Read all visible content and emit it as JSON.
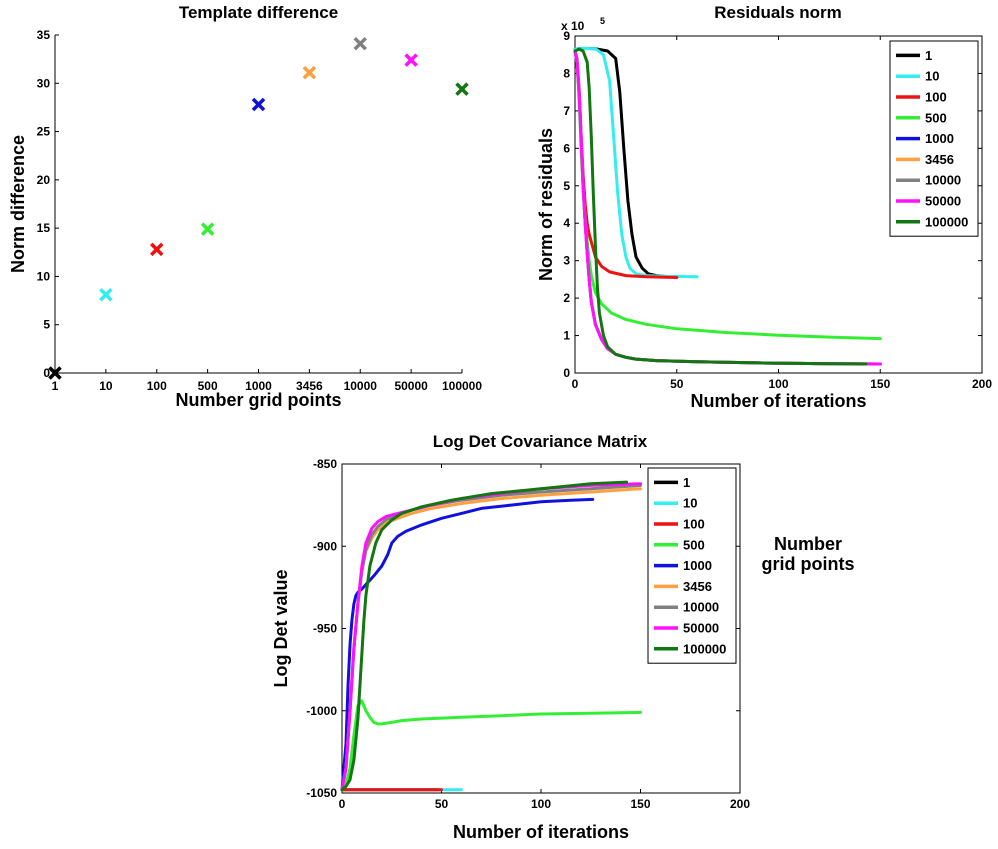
{
  "chart_data": [
    {
      "id": "template",
      "type": "scatter",
      "title": "Template difference",
      "xlabel": "Number grid points",
      "ylabel": "Norm difference",
      "categories": [
        "1",
        "10",
        "100",
        "500",
        "1000",
        "3456",
        "10000",
        "50000",
        "100000"
      ],
      "values": [
        0,
        8.1,
        12.8,
        14.9,
        27.8,
        31.1,
        34.1,
        32.4,
        29.4
      ],
      "colors": [
        "#000000",
        "#33eeee",
        "#ee1111",
        "#33ee33",
        "#1111dd",
        "#ffa040",
        "#808080",
        "#ff11ff",
        "#117711"
      ],
      "marker": "x",
      "ylim": [
        0,
        35
      ],
      "yticks": [
        0,
        5,
        10,
        15,
        20,
        25,
        30,
        35
      ],
      "grid": false
    },
    {
      "id": "residuals",
      "type": "line",
      "title": "Residuals norm",
      "xlabel": "Number of iterations",
      "ylabel": "Norm of residuals",
      "y_exponent_label": "x 10",
      "y_exponent": "5",
      "xlim": [
        0,
        200
      ],
      "ylim": [
        0,
        9
      ],
      "xticks": [
        0,
        50,
        100,
        150,
        200
      ],
      "yticks": [
        0,
        1,
        2,
        3,
        4,
        5,
        6,
        7,
        8,
        9
      ],
      "legend_position": "top-right",
      "grid": false,
      "series": [
        {
          "name": "1",
          "color": "#000000",
          "x": [
            0,
            4,
            10,
            16,
            20,
            22,
            24,
            26,
            28,
            30,
            33,
            36,
            40,
            44,
            48
          ],
          "y": [
            8.65,
            8.67,
            8.66,
            8.6,
            8.4,
            7.5,
            6.0,
            4.6,
            3.7,
            3.1,
            2.8,
            2.65,
            2.6,
            2.58,
            2.57
          ]
        },
        {
          "name": "10",
          "color": "#33eeee",
          "x": [
            0,
            4,
            10,
            14,
            17,
            19,
            21,
            23,
            25,
            27,
            30,
            35,
            45,
            60
          ],
          "y": [
            8.65,
            8.67,
            8.66,
            8.5,
            7.8,
            6.3,
            4.8,
            3.7,
            3.1,
            2.8,
            2.65,
            2.6,
            2.58,
            2.57
          ]
        },
        {
          "name": "100",
          "color": "#ee1111",
          "x": [
            0,
            1,
            2,
            3,
            4,
            5,
            6,
            7,
            8,
            10,
            13,
            17,
            25,
            35,
            50
          ],
          "y": [
            8.6,
            8.4,
            7.6,
            6.4,
            5.3,
            4.5,
            4.0,
            3.7,
            3.5,
            3.1,
            2.85,
            2.7,
            2.6,
            2.57,
            2.55
          ]
        },
        {
          "name": "500",
          "color": "#33ee33",
          "x": [
            0,
            1,
            2,
            3,
            4,
            5,
            6,
            7,
            8,
            10,
            13,
            18,
            25,
            35,
            50,
            75,
            100,
            125,
            150
          ],
          "y": [
            8.6,
            8.3,
            7.3,
            6.0,
            4.9,
            4.1,
            3.5,
            3.0,
            2.6,
            2.15,
            1.85,
            1.6,
            1.43,
            1.3,
            1.18,
            1.08,
            1.01,
            0.96,
            0.92
          ]
        },
        {
          "name": "1000",
          "color": "#1111dd",
          "x": [
            0,
            1,
            2,
            3,
            4,
            5,
            6,
            7,
            8,
            10,
            13,
            16,
            20,
            25,
            30,
            40,
            60,
            90,
            120,
            150
          ],
          "y": [
            8.6,
            8.3,
            7.5,
            6.3,
            5.0,
            4.0,
            3.2,
            2.5,
            1.9,
            1.3,
            0.9,
            0.65,
            0.5,
            0.42,
            0.37,
            0.33,
            0.3,
            0.27,
            0.25,
            0.24
          ]
        },
        {
          "name": "3456",
          "color": "#ffa040",
          "x": [
            0,
            1,
            2,
            3,
            4,
            5,
            6,
            7,
            8,
            10,
            13,
            16,
            20,
            25,
            30,
            40,
            60,
            90,
            120,
            150
          ],
          "y": [
            8.6,
            8.3,
            7.5,
            6.3,
            5.0,
            4.0,
            3.2,
            2.5,
            1.9,
            1.3,
            0.9,
            0.65,
            0.5,
            0.42,
            0.37,
            0.33,
            0.3,
            0.27,
            0.25,
            0.24
          ]
        },
        {
          "name": "10000",
          "color": "#808080",
          "x": [
            0,
            1,
            2,
            3,
            4,
            5,
            6,
            7,
            8,
            10,
            13,
            16,
            20,
            25,
            30,
            40,
            60,
            90,
            120,
            150
          ],
          "y": [
            8.6,
            8.3,
            7.5,
            6.3,
            5.0,
            4.0,
            3.2,
            2.5,
            1.9,
            1.3,
            0.9,
            0.65,
            0.5,
            0.42,
            0.37,
            0.33,
            0.3,
            0.27,
            0.25,
            0.24
          ]
        },
        {
          "name": "50000",
          "color": "#ff11ff",
          "x": [
            0,
            1,
            2,
            3,
            4,
            5,
            6,
            7,
            8,
            10,
            13,
            16,
            20,
            25,
            30,
            40,
            60,
            90,
            120,
            150
          ],
          "y": [
            8.6,
            8.3,
            7.5,
            6.3,
            5.0,
            4.0,
            3.2,
            2.5,
            1.9,
            1.3,
            0.9,
            0.65,
            0.5,
            0.42,
            0.37,
            0.33,
            0.3,
            0.27,
            0.25,
            0.24
          ]
        },
        {
          "name": "100000",
          "color": "#117711",
          "x": [
            0,
            2,
            4,
            6,
            7,
            8,
            9,
            10,
            11,
            12,
            14,
            16,
            20,
            25,
            30,
            40,
            60,
            90,
            120,
            143
          ],
          "y": [
            8.6,
            8.65,
            8.6,
            8.3,
            7.6,
            6.3,
            4.8,
            3.4,
            2.3,
            1.6,
            1.0,
            0.7,
            0.5,
            0.42,
            0.37,
            0.33,
            0.3,
            0.27,
            0.25,
            0.24
          ]
        }
      ]
    },
    {
      "id": "logdet",
      "type": "line",
      "title": "Log Det Covariance Matrix",
      "xlabel": "Number of iterations",
      "ylabel": "Log Det value",
      "legend_side_label": "Number\ngrid points",
      "xlim": [
        0,
        200
      ],
      "ylim": [
        -1050,
        -850
      ],
      "xticks": [
        0,
        50,
        100,
        150,
        200
      ],
      "yticks": [
        -1050,
        -1000,
        -950,
        -900,
        -850
      ],
      "legend_position": "right",
      "grid": false,
      "series": [
        {
          "name": "1",
          "color": "#000000",
          "x": [
            0,
            10,
            20,
            30,
            40,
            48
          ],
          "y": [
            -1048,
            -1048,
            -1048,
            -1048,
            -1048,
            -1048
          ]
        },
        {
          "name": "10",
          "color": "#33eeee",
          "x": [
            0,
            10,
            20,
            30,
            40,
            50,
            60
          ],
          "y": [
            -1048,
            -1048,
            -1048,
            -1048,
            -1048,
            -1048,
            -1048
          ]
        },
        {
          "name": "100",
          "color": "#ee1111",
          "x": [
            0,
            10,
            20,
            30,
            40,
            50
          ],
          "y": [
            -1048,
            -1048,
            -1048,
            -1048,
            -1048,
            -1048
          ]
        },
        {
          "name": "500",
          "color": "#33ee33",
          "x": [
            0,
            2,
            4,
            6,
            8,
            10,
            12,
            14,
            16,
            18,
            20,
            25,
            30,
            40,
            60,
            80,
            100,
            125,
            150
          ],
          "y": [
            -1048,
            -1045,
            -1035,
            -1015,
            -997,
            -994,
            -1000,
            -1004,
            -1007,
            -1008,
            -1008,
            -1007,
            -1006,
            -1005,
            -1004,
            -1003,
            -1002,
            -1001.5,
            -1001
          ]
        },
        {
          "name": "1000",
          "color": "#1111dd",
          "x": [
            0,
            2,
            3,
            4,
            5,
            6,
            7,
            8,
            10,
            13,
            16,
            20,
            23,
            25,
            28,
            32,
            40,
            50,
            60,
            70,
            85,
            100,
            115,
            126
          ],
          "y": [
            -1048,
            -1020,
            -985,
            -960,
            -945,
            -935,
            -930,
            -928,
            -926,
            -922,
            -918,
            -912,
            -905,
            -898,
            -894,
            -891,
            -887,
            -883,
            -880,
            -877,
            -875,
            -873,
            -872,
            -871.5
          ]
        },
        {
          "name": "3456",
          "color": "#ffa040",
          "x": [
            0,
            2,
            4,
            6,
            8,
            10,
            12,
            15,
            18,
            22,
            28,
            35,
            45,
            60,
            80,
            100,
            125,
            150
          ],
          "y": [
            -1048,
            -1035,
            -1000,
            -962,
            -935,
            -915,
            -903,
            -895,
            -890,
            -886,
            -883,
            -880,
            -877,
            -874,
            -871,
            -869,
            -867,
            -865
          ]
        },
        {
          "name": "10000",
          "color": "#808080",
          "x": [
            0,
            2,
            4,
            6,
            8,
            10,
            12,
            15,
            18,
            22,
            28,
            35,
            45,
            60,
            80,
            100,
            125,
            150
          ],
          "y": [
            -1048,
            -1035,
            -1000,
            -962,
            -935,
            -915,
            -902,
            -893,
            -888,
            -884,
            -881,
            -878,
            -875,
            -872,
            -869,
            -867,
            -865,
            -863
          ]
        },
        {
          "name": "50000",
          "color": "#ff11ff",
          "x": [
            0,
            2,
            4,
            6,
            8,
            10,
            12,
            15,
            18,
            22,
            28,
            35,
            45,
            60,
            80,
            100,
            125,
            150
          ],
          "y": [
            -1048,
            -1035,
            -1000,
            -962,
            -935,
            -912,
            -898,
            -889,
            -885,
            -882,
            -880,
            -878,
            -875,
            -871,
            -868,
            -865,
            -863,
            -862
          ]
        },
        {
          "name": "100000",
          "color": "#117711",
          "x": [
            0,
            2,
            4,
            6,
            8,
            9,
            10,
            11,
            12,
            14,
            17,
            20,
            25,
            30,
            40,
            55,
            75,
            100,
            125,
            143
          ],
          "y": [
            -1048,
            -1046,
            -1042,
            -1030,
            -1005,
            -985,
            -965,
            -945,
            -930,
            -912,
            -898,
            -890,
            -884,
            -880,
            -876,
            -872,
            -868,
            -865,
            -862,
            -861
          ]
        }
      ]
    }
  ]
}
